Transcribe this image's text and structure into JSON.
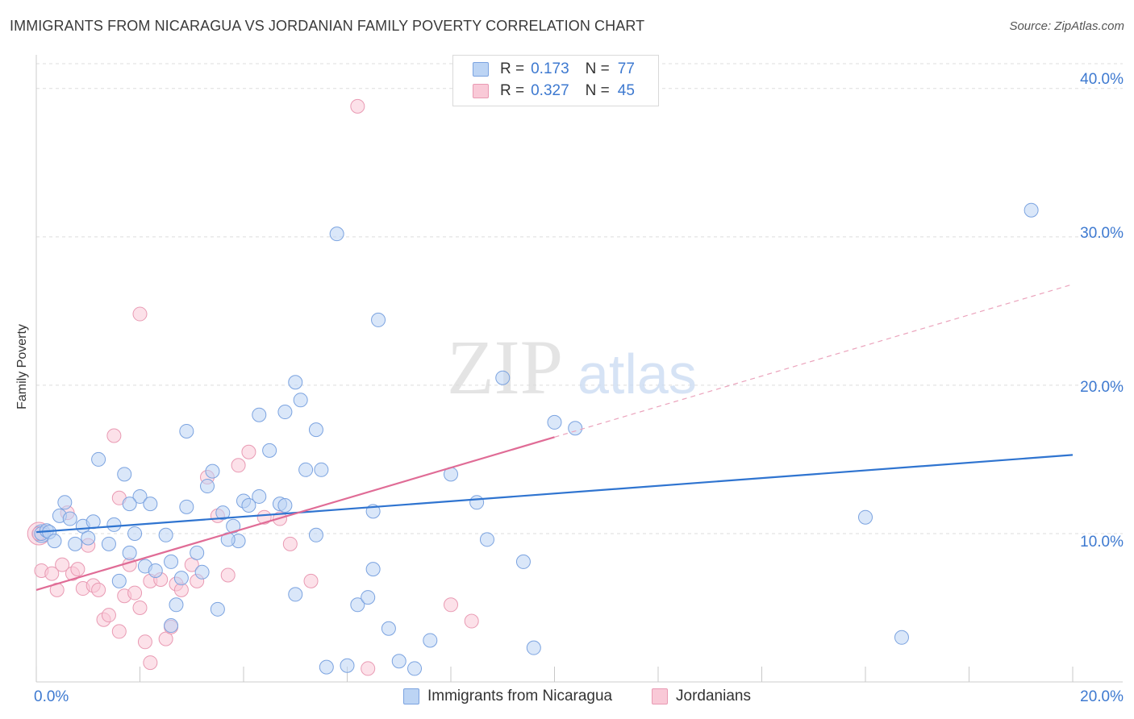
{
  "title": "IMMIGRANTS FROM NICARAGUA VS JORDANIAN FAMILY POVERTY CORRELATION CHART",
  "source": "Source: ZipAtlas.com",
  "watermark": {
    "zip": "ZIP",
    "atlas": "atlas"
  },
  "legend": {
    "series": [
      {
        "r_label": "R =",
        "r_value": "0.173",
        "n_label": "N =",
        "n_value": "77",
        "fill": "#bcd4f4",
        "stroke": "#7ba3e0"
      },
      {
        "r_label": "R =",
        "r_value": "0.327",
        "n_label": "N =",
        "n_value": "45",
        "fill": "#f9c9d7",
        "stroke": "#e99ab3"
      }
    ]
  },
  "bottom_legend": [
    {
      "label": "Immigrants from Nicaragua"
    },
    {
      "label": "Jordanians"
    }
  ],
  "chart_data": {
    "type": "scatter",
    "title": "IMMIGRANTS FROM NICARAGUA VS JORDANIAN FAMILY POVERTY CORRELATION CHART",
    "xlabel": "",
    "ylabel": "Family Poverty",
    "xlim": [
      0,
      20
    ],
    "ylim": [
      0,
      42
    ],
    "x_tick_labels": [
      "0.0%",
      "20.0%"
    ],
    "y_ticks": [
      10,
      20,
      30,
      40
    ],
    "y_tick_labels": [
      "10.0%",
      "20.0%",
      "30.0%",
      "40.0%"
    ],
    "grid": true,
    "colors": {
      "blue": "#2f74d0",
      "pink": "#e06c96",
      "blue_fill": "#bcd4f4",
      "pink_fill": "#f9c9d7",
      "axis_text": "#3d79d0"
    },
    "series": [
      {
        "name": "Immigrants from Nicaragua",
        "x": [
          0.1,
          0.2,
          0.25,
          0.35,
          0.45,
          0.55,
          0.65,
          0.75,
          0.9,
          1.0,
          1.1,
          1.2,
          1.4,
          1.5,
          1.6,
          1.7,
          1.8,
          1.9,
          2.0,
          2.1,
          2.2,
          2.3,
          2.5,
          2.6,
          2.7,
          2.8,
          2.9,
          3.1,
          3.2,
          3.3,
          3.4,
          3.5,
          3.6,
          3.8,
          3.9,
          4.0,
          4.1,
          4.3,
          4.5,
          4.7,
          4.8,
          5.0,
          5.1,
          5.2,
          5.4,
          5.5,
          5.6,
          5.8,
          6.0,
          6.2,
          6.4,
          6.5,
          6.6,
          7.0,
          7.3,
          7.6,
          8.0,
          8.5,
          8.7,
          9.0,
          9.4,
          9.6,
          10.0,
          10.4,
          16.0,
          16.7,
          19.2,
          4.8,
          5.0,
          5.4,
          6.5,
          3.7,
          4.3,
          6.8,
          2.9,
          1.8,
          2.6
        ],
        "y": [
          10.0,
          10.2,
          10.1,
          9.5,
          11.2,
          12.1,
          11.0,
          9.3,
          10.5,
          9.7,
          10.8,
          15.0,
          9.3,
          10.6,
          6.8,
          14.0,
          8.7,
          10.0,
          12.5,
          7.8,
          12.0,
          7.5,
          9.9,
          8.1,
          5.2,
          7.0,
          11.8,
          8.7,
          7.4,
          13.2,
          14.2,
          4.9,
          11.4,
          10.5,
          9.5,
          12.2,
          11.9,
          12.5,
          15.6,
          12.0,
          11.9,
          20.2,
          19.0,
          14.3,
          17.0,
          14.3,
          1.0,
          30.2,
          1.1,
          5.2,
          5.7,
          7.6,
          24.4,
          1.4,
          0.9,
          2.8,
          14.0,
          12.1,
          9.6,
          20.5,
          8.1,
          2.3,
          17.5,
          17.1,
          11.1,
          3.0,
          31.8,
          18.2,
          5.9,
          9.9,
          11.5,
          9.6,
          18.0,
          3.6,
          16.9,
          12.0,
          3.8
        ],
        "trend": {
          "x": [
            0,
            20
          ],
          "y": [
            10.1,
            15.3
          ]
        }
      },
      {
        "name": "Jordanians",
        "x": [
          0.05,
          0.1,
          0.3,
          0.4,
          0.5,
          0.6,
          0.7,
          0.8,
          0.9,
          1.0,
          1.1,
          1.2,
          1.3,
          1.4,
          1.5,
          1.6,
          1.7,
          1.8,
          2.0,
          2.1,
          2.2,
          2.4,
          2.5,
          2.6,
          2.7,
          2.8,
          3.0,
          3.1,
          3.3,
          3.5,
          3.7,
          3.9,
          4.1,
          4.4,
          4.7,
          4.9,
          5.3,
          6.2,
          6.4,
          1.9,
          2.2,
          2.0,
          8.0,
          8.4,
          1.6
        ],
        "y": [
          10.0,
          7.5,
          7.3,
          6.2,
          7.9,
          11.4,
          7.3,
          7.6,
          6.3,
          9.2,
          6.5,
          6.2,
          4.2,
          4.5,
          16.6,
          3.4,
          5.8,
          7.9,
          5.0,
          2.7,
          6.8,
          6.9,
          2.9,
          3.7,
          6.6,
          6.2,
          7.9,
          6.8,
          13.8,
          11.2,
          7.2,
          14.6,
          15.5,
          11.1,
          11.0,
          9.3,
          6.8,
          38.8,
          0.9,
          6.0,
          1.3,
          24.8,
          5.2,
          4.1,
          12.4
        ],
        "trend_solid": {
          "x": [
            0,
            10
          ],
          "y": [
            6.2,
            16.5
          ]
        },
        "trend_dashed": {
          "x": [
            10,
            20
          ],
          "y": [
            16.5,
            26.8
          ]
        }
      }
    ]
  }
}
